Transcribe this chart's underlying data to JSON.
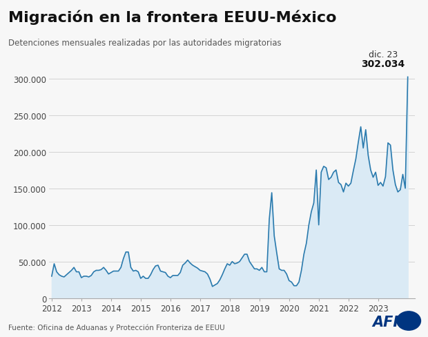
{
  "title": "Migración en la frontera EEUU-México",
  "subtitle": "Detenciones mensuales realizadas por las autoridades migratorias",
  "source": "Fuente: Oficina de Aduanas y Protección Fronteriza de EEUU",
  "annotation_label": "dic. 23",
  "annotation_value": "302.034",
  "line_color": "#2a7aad",
  "fill_color": "#daeaf5",
  "background_color": "#f7f7f7",
  "ylim": [
    0,
    325000
  ],
  "yticks": [
    0,
    50000,
    100000,
    150000,
    200000,
    250000,
    300000
  ],
  "ytick_labels": [
    "0",
    "50.000",
    "100.000",
    "150.000",
    "200.000",
    "250.000",
    "300.000"
  ],
  "data": [
    30000,
    47000,
    36000,
    32000,
    30000,
    29000,
    32000,
    35000,
    38000,
    42000,
    36000,
    36000,
    28000,
    30000,
    30000,
    29000,
    31000,
    36000,
    38000,
    38000,
    39000,
    42000,
    38000,
    33000,
    35000,
    37000,
    37000,
    37000,
    42000,
    54000,
    63000,
    63000,
    42000,
    37000,
    38000,
    36000,
    27000,
    30000,
    27000,
    27000,
    32000,
    39000,
    44000,
    45000,
    37000,
    36000,
    35000,
    30000,
    28000,
    31000,
    31000,
    31000,
    35000,
    45000,
    48000,
    52000,
    48000,
    45000,
    43000,
    41000,
    38000,
    37000,
    36000,
    33000,
    26000,
    16000,
    18000,
    20000,
    25000,
    32000,
    40000,
    47000,
    45000,
    50000,
    47000,
    48000,
    50000,
    55000,
    60000,
    60000,
    50000,
    45000,
    40000,
    40000,
    38000,
    42000,
    36000,
    36000,
    108000,
    144000,
    85000,
    62000,
    40000,
    38000,
    38000,
    33000,
    24000,
    22000,
    17000,
    17000,
    22000,
    38000,
    60000,
    75000,
    100000,
    118000,
    130000,
    175000,
    100000,
    172000,
    180000,
    178000,
    162000,
    165000,
    172000,
    175000,
    158000,
    155000,
    145000,
    157000,
    153000,
    157000,
    174000,
    190000,
    213000,
    234000,
    205000,
    230000,
    195000,
    175000,
    165000,
    172000,
    154000,
    158000,
    153000,
    166000,
    212000,
    209000,
    175000,
    155000,
    145000,
    148000,
    169000,
    150000,
    302034
  ]
}
